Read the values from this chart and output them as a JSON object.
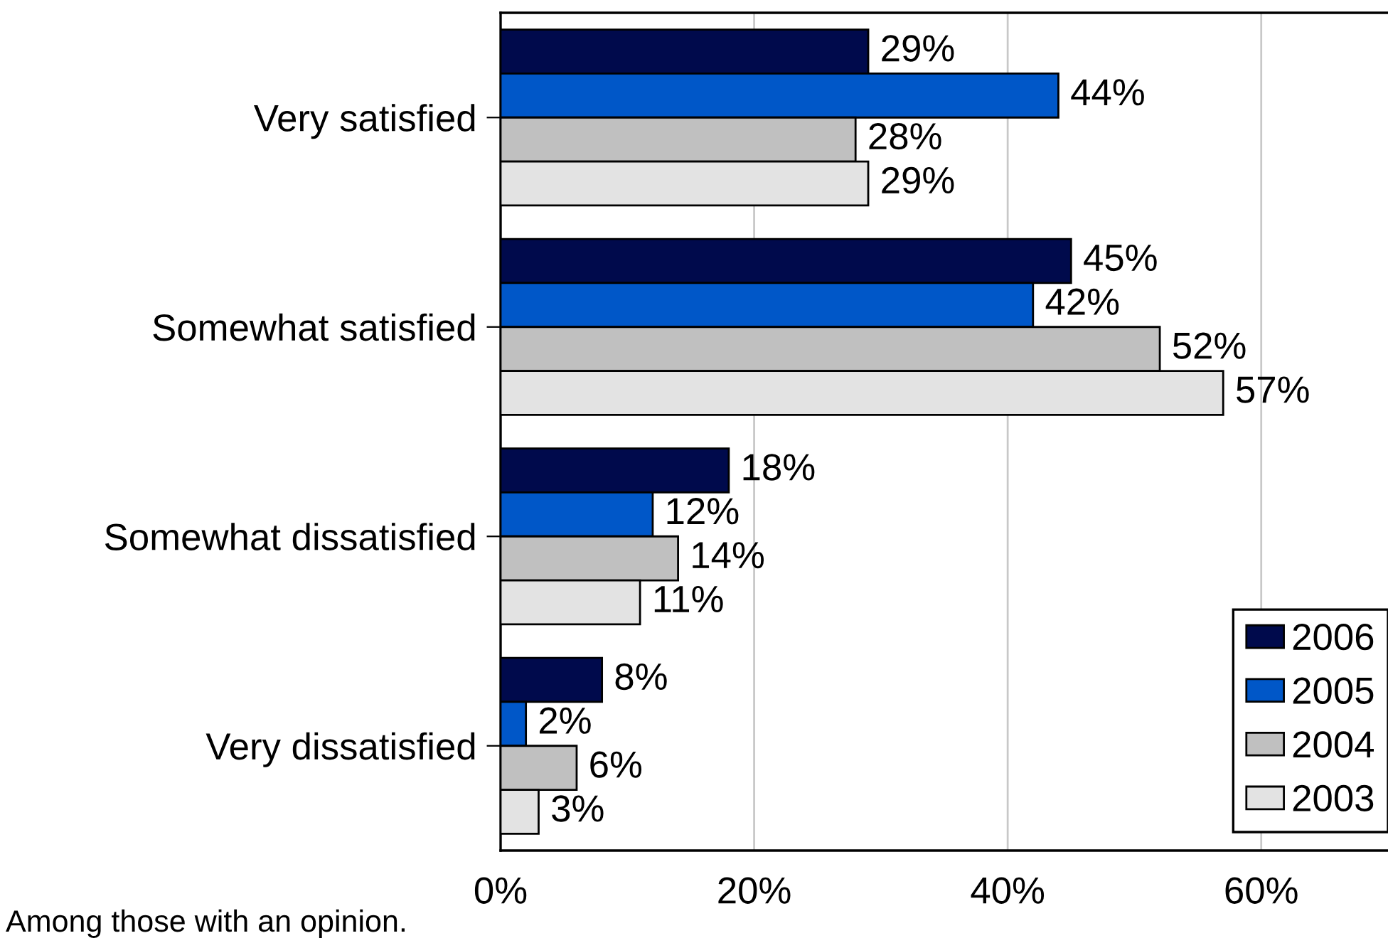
{
  "chart_data": {
    "type": "bar",
    "orientation": "horizontal",
    "categories": [
      "Very satisfied",
      "Somewhat satisfied",
      "Somewhat dissatisfied",
      "Very dissatisfied"
    ],
    "series": [
      {
        "name": "2006",
        "color": "#000a4c",
        "values": [
          29,
          45,
          18,
          8
        ],
        "value_labels": [
          "29%",
          "45%",
          "18%",
          "8%"
        ]
      },
      {
        "name": "2005",
        "color": "#0057c8",
        "values": [
          44,
          42,
          12,
          2
        ],
        "value_labels": [
          "44%",
          "42%",
          "12%",
          "2%"
        ]
      },
      {
        "name": "2004",
        "color": "#c0c0c0",
        "values": [
          28,
          52,
          14,
          6
        ],
        "value_labels": [
          "28%",
          "52%",
          "14%",
          "6%"
        ]
      },
      {
        "name": "2003",
        "color": "#e3e3e3",
        "values": [
          29,
          57,
          11,
          3
        ],
        "value_labels": [
          "29%",
          "57%",
          "11%",
          "3%"
        ]
      }
    ],
    "xlim": [
      0,
      70
    ],
    "xticks": [
      {
        "value": 0,
        "label": "0%"
      },
      {
        "value": 20,
        "label": "20%"
      },
      {
        "value": 40,
        "label": "40%"
      },
      {
        "value": 60,
        "label": "60%"
      }
    ],
    "grid": "x",
    "legend": "bottom right",
    "annotations": [
      "Among those with an opinion."
    ]
  }
}
